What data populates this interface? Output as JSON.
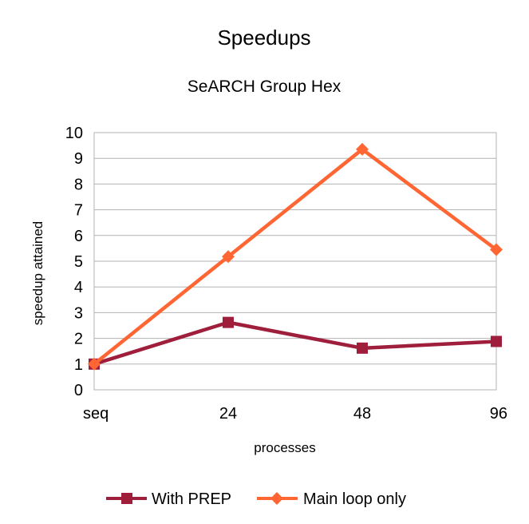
{
  "chart_data": {
    "type": "line",
    "title": "Speedups",
    "subtitle": "SeARCH Group Hex",
    "xlabel": "processes",
    "ylabel": "speedup attained",
    "categories": [
      "seq",
      "24",
      "48",
      "96"
    ],
    "ylim": [
      0,
      10
    ],
    "yticks": [
      "0",
      "1",
      "2",
      "3",
      "4",
      "5",
      "6",
      "7",
      "8",
      "9",
      "10"
    ],
    "grid": true,
    "legend_position": "bottom",
    "series": [
      {
        "name": "With PREP",
        "values": [
          1,
          2.62,
          1.62,
          1.88
        ],
        "color": "#9e1e3c",
        "marker": "square"
      },
      {
        "name": "Main loop only",
        "values": [
          1,
          5.18,
          9.35,
          5.45
        ],
        "color": "#ff6633",
        "marker": "diamond"
      }
    ]
  }
}
